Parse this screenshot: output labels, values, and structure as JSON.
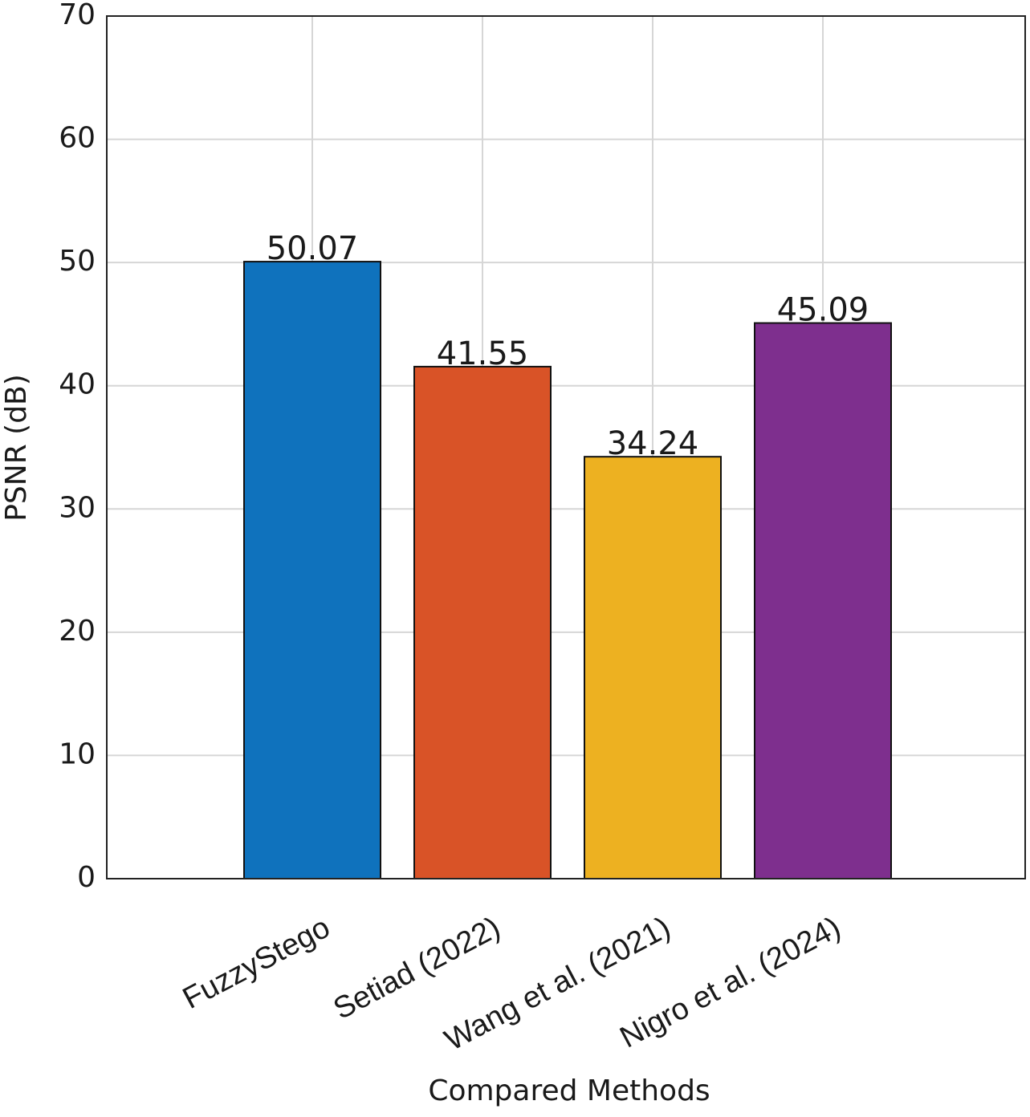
{
  "chart_data": {
    "type": "bar",
    "x_label": "Compared Methods",
    "y_label": "PSNR (dB)",
    "categories": [
      "FuzzyStego",
      "Setiad (2022)",
      "Wang et al. (2021)",
      "Nigro et al. (2024)"
    ],
    "values": [
      50.07,
      41.55,
      34.24,
      45.09
    ],
    "colors": [
      "#0f72bd",
      "#d95327",
      "#edb121",
      "#7e2f8e"
    ],
    "ylim": [
      0,
      70
    ],
    "yticks": [
      0,
      10,
      20,
      30,
      40,
      50,
      60,
      70
    ],
    "grid": true
  }
}
